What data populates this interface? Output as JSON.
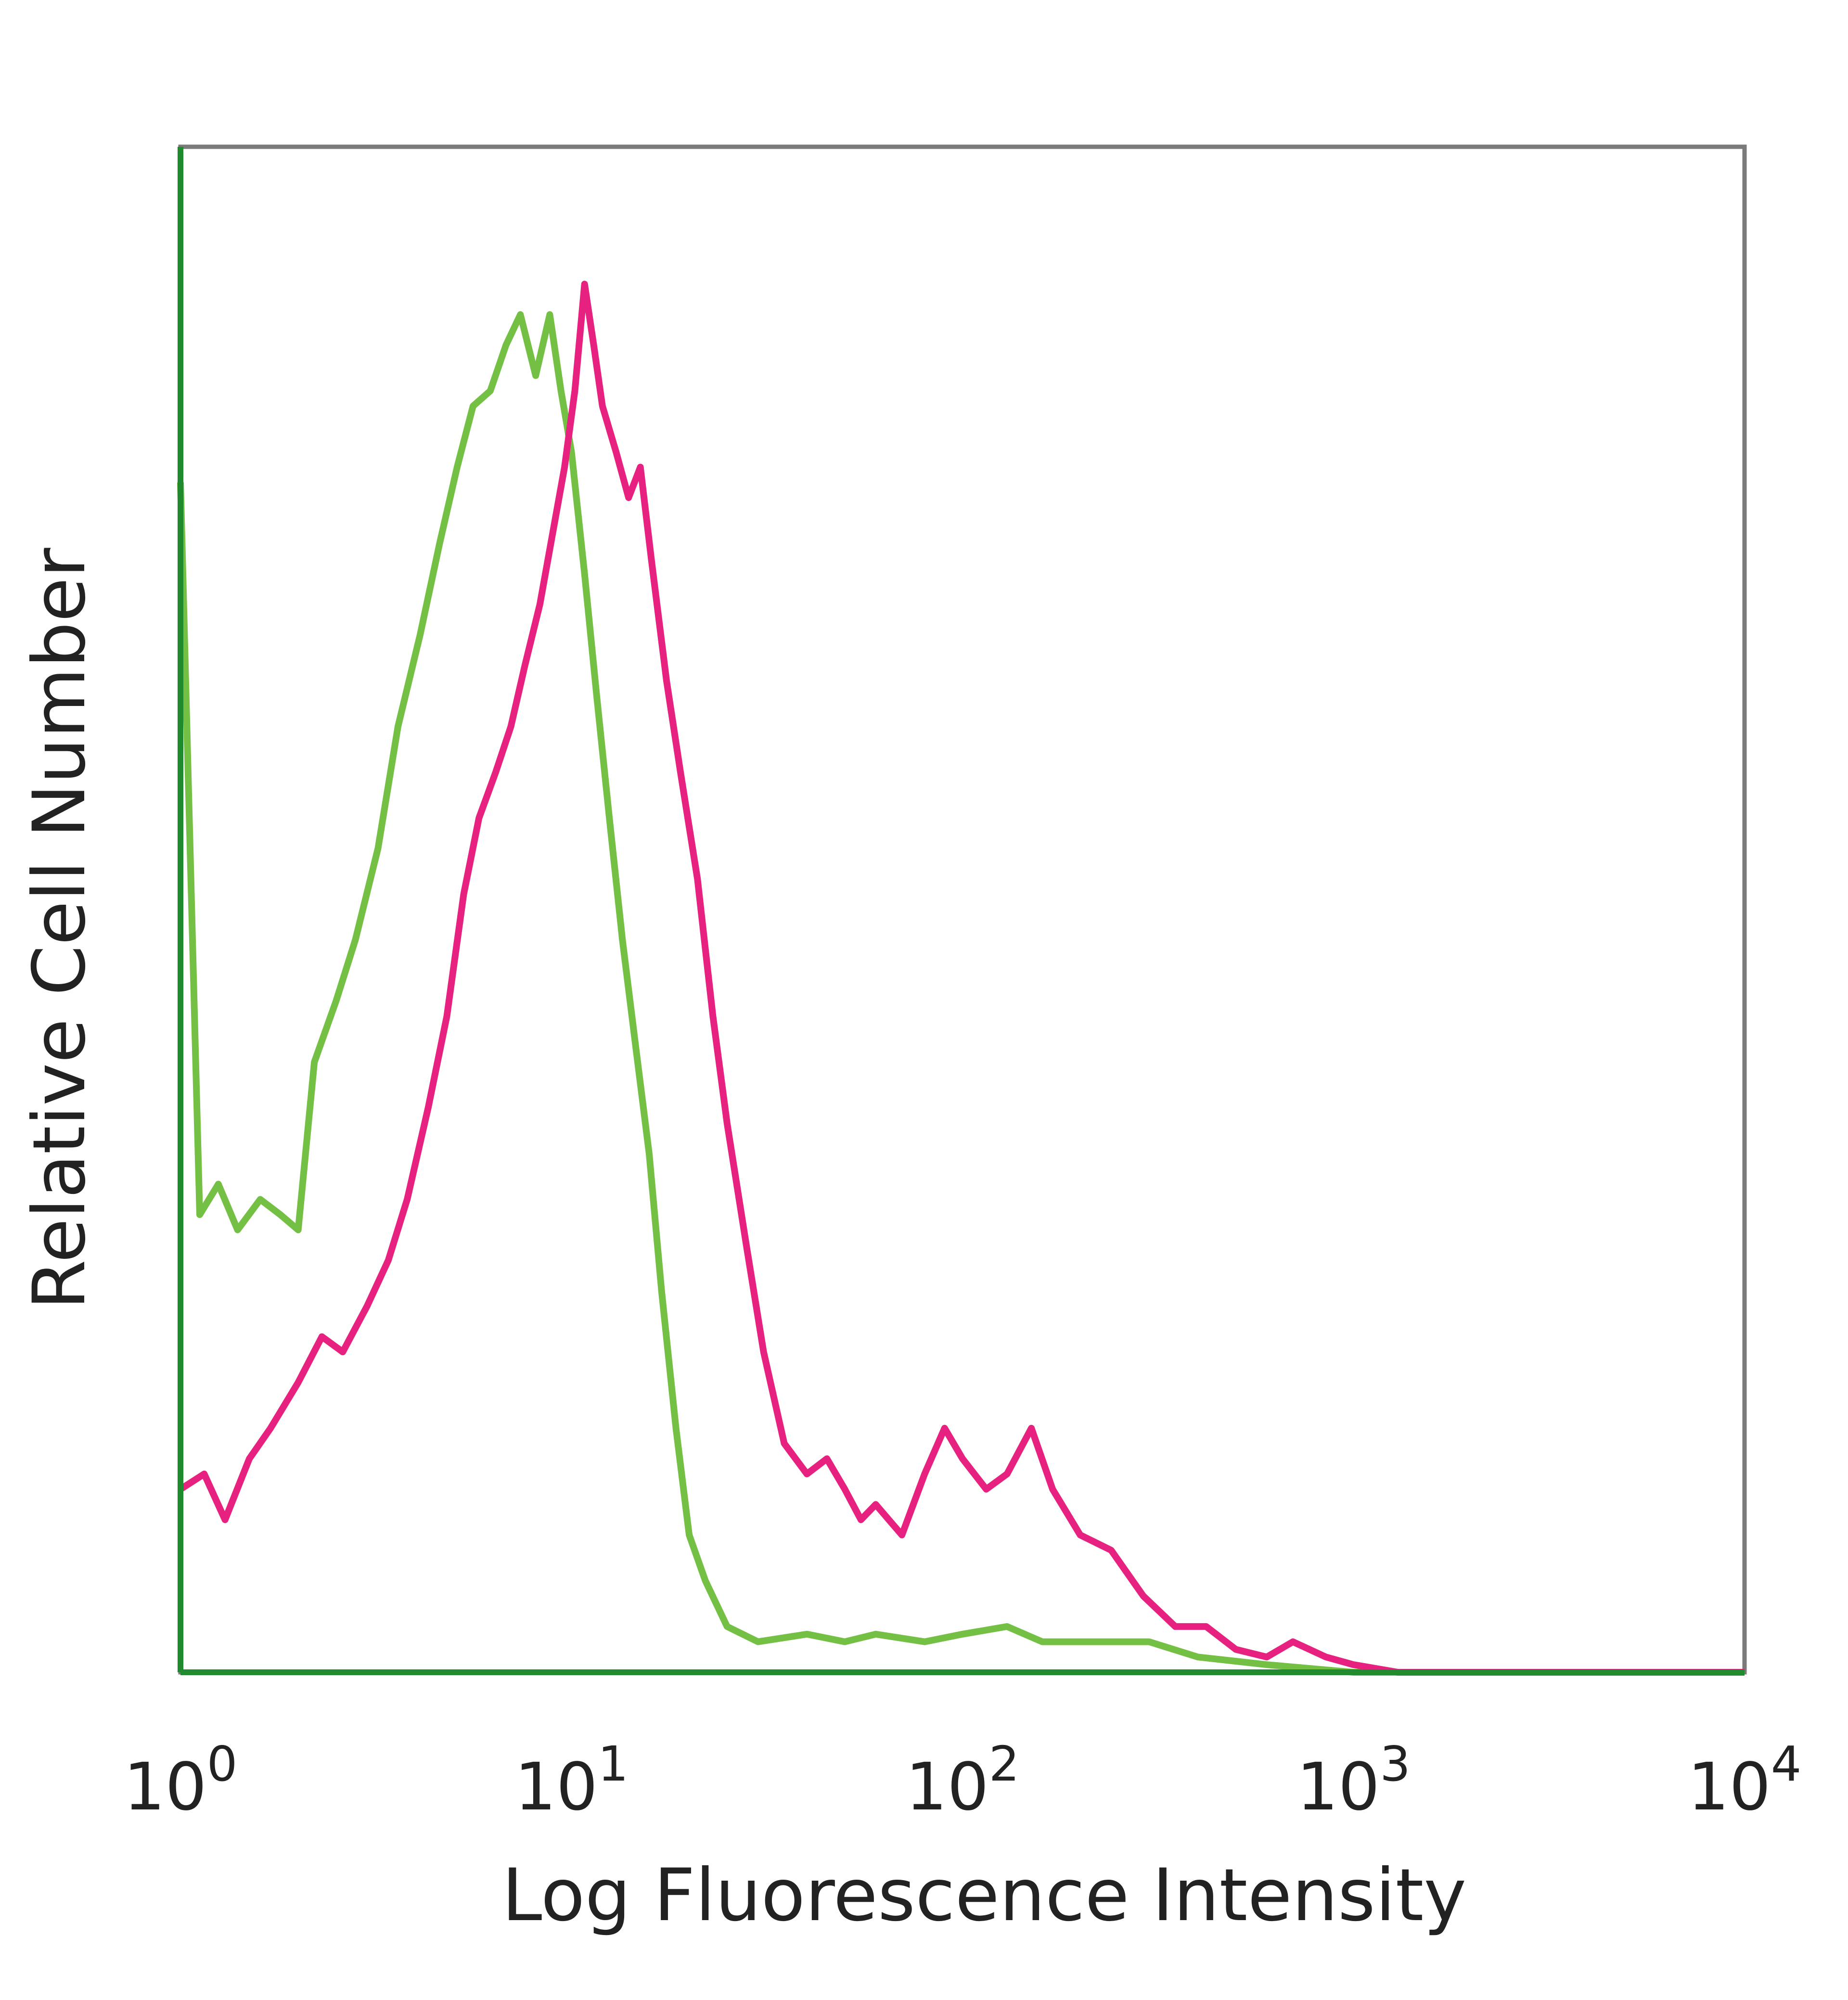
{
  "chart_data": {
    "type": "line",
    "xscale": "log",
    "xlim": [
      1,
      10000
    ],
    "ylim": [
      0,
      100
    ],
    "grid": false,
    "legend": "none",
    "xlabel": "Log Fluorescence Intensity",
    "ylabel": "Relative Cell Number",
    "x_ticks": [
      {
        "base": "10",
        "exp": "0",
        "value": 1
      },
      {
        "base": "10",
        "exp": "1",
        "value": 10
      },
      {
        "base": "10",
        "exp": "2",
        "value": 100
      },
      {
        "base": "10",
        "exp": "3",
        "value": 1000
      },
      {
        "base": "10",
        "exp": "4",
        "value": 10000
      }
    ],
    "series": [
      {
        "color": "#74c044",
        "points": [
          [
            1.0,
            78
          ],
          [
            1.12,
            30
          ],
          [
            1.25,
            32
          ],
          [
            1.4,
            29
          ],
          [
            1.6,
            31
          ],
          [
            1.8,
            30
          ],
          [
            2.0,
            29
          ],
          [
            2.2,
            40
          ],
          [
            2.5,
            44
          ],
          [
            2.8,
            48
          ],
          [
            3.2,
            54
          ],
          [
            3.6,
            62
          ],
          [
            4.1,
            68
          ],
          [
            4.6,
            74
          ],
          [
            5.1,
            79
          ],
          [
            5.6,
            83
          ],
          [
            6.2,
            84
          ],
          [
            6.8,
            87
          ],
          [
            7.4,
            89
          ],
          [
            8.1,
            85
          ],
          [
            8.8,
            89
          ],
          [
            9.4,
            84
          ],
          [
            10.0,
            80
          ],
          [
            10.8,
            72
          ],
          [
            11.6,
            64
          ],
          [
            12.5,
            56
          ],
          [
            13.5,
            48
          ],
          [
            14.6,
            41
          ],
          [
            15.8,
            34
          ],
          [
            17.0,
            25
          ],
          [
            18.5,
            16
          ],
          [
            20.0,
            9
          ],
          [
            22.0,
            6
          ],
          [
            25.0,
            3
          ],
          [
            30.0,
            2
          ],
          [
            40.0,
            2.5
          ],
          [
            50.0,
            2
          ],
          [
            60.0,
            2.5
          ],
          [
            80.0,
            2
          ],
          [
            100.0,
            2.5
          ],
          [
            130.0,
            3
          ],
          [
            160.0,
            2
          ],
          [
            220.0,
            2
          ],
          [
            300.0,
            2
          ],
          [
            400.0,
            1
          ],
          [
            600.0,
            0.5
          ],
          [
            1000.0,
            0
          ],
          [
            3000.0,
            0
          ],
          [
            10000.0,
            0
          ]
        ]
      },
      {
        "color": "#e6217f",
        "points": [
          [
            1.0,
            12
          ],
          [
            1.15,
            13
          ],
          [
            1.3,
            10
          ],
          [
            1.5,
            14
          ],
          [
            1.7,
            16
          ],
          [
            2.0,
            19
          ],
          [
            2.3,
            22
          ],
          [
            2.6,
            21
          ],
          [
            3.0,
            24
          ],
          [
            3.4,
            27
          ],
          [
            3.8,
            31
          ],
          [
            4.3,
            37
          ],
          [
            4.8,
            43
          ],
          [
            5.3,
            51
          ],
          [
            5.8,
            56
          ],
          [
            6.4,
            59
          ],
          [
            7.0,
            62
          ],
          [
            7.6,
            66
          ],
          [
            8.3,
            70
          ],
          [
            9.0,
            75
          ],
          [
            9.6,
            79
          ],
          [
            10.2,
            84
          ],
          [
            10.8,
            91
          ],
          [
            11.4,
            87
          ],
          [
            12.0,
            83
          ],
          [
            13.0,
            80
          ],
          [
            14.0,
            77
          ],
          [
            15.0,
            79
          ],
          [
            16.0,
            73
          ],
          [
            17.5,
            65
          ],
          [
            19.0,
            59
          ],
          [
            21.0,
            52
          ],
          [
            23.0,
            43
          ],
          [
            25.0,
            36
          ],
          [
            28.0,
            28
          ],
          [
            31.0,
            21
          ],
          [
            35.0,
            15
          ],
          [
            40.0,
            13
          ],
          [
            45.0,
            14
          ],
          [
            50.0,
            12
          ],
          [
            55.0,
            10
          ],
          [
            60.0,
            11
          ],
          [
            70.0,
            9
          ],
          [
            80.0,
            13
          ],
          [
            90.0,
            16
          ],
          [
            100.0,
            14
          ],
          [
            115.0,
            12
          ],
          [
            130.0,
            13
          ],
          [
            150.0,
            16
          ],
          [
            170.0,
            12
          ],
          [
            200.0,
            9
          ],
          [
            240.0,
            8
          ],
          [
            290.0,
            5
          ],
          [
            350.0,
            3
          ],
          [
            420.0,
            3
          ],
          [
            500.0,
            1.5
          ],
          [
            600.0,
            1
          ],
          [
            700.0,
            2
          ],
          [
            850.0,
            1
          ],
          [
            1000.0,
            0.5
          ],
          [
            1300.0,
            0
          ],
          [
            3000.0,
            0
          ],
          [
            10000.0,
            0
          ]
        ]
      }
    ]
  },
  "colors": {
    "frame": "#7a7a7a",
    "axis": "#1f8a2e"
  }
}
